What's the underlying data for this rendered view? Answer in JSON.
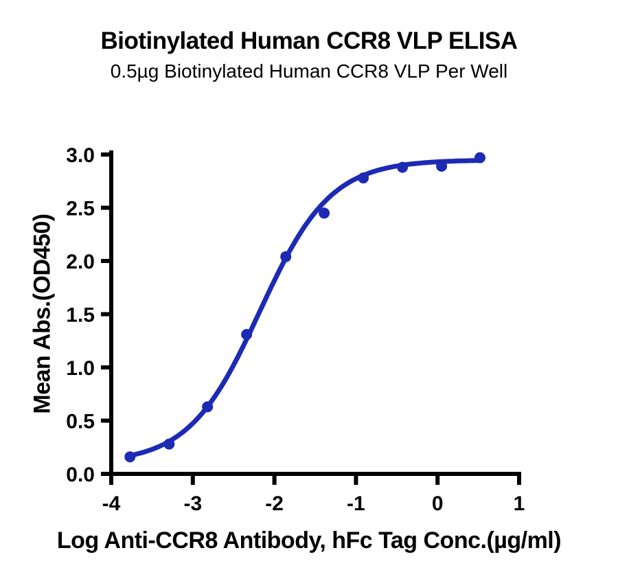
{
  "chart_data": {
    "type": "scatter",
    "title": "Biotinylated Human CCR8 VLP ELISA",
    "subtitle": "0.5µg Biotinylated Human CCR8 VLP Per Well",
    "xlabel": "Log Anti-CCR8 Antibody, hFc Tag Conc.(µg/ml)",
    "ylabel": "Mean Abs.(OD450)",
    "xlim": [
      -4,
      1
    ],
    "ylim": [
      0,
      3
    ],
    "grid": false,
    "legend": null,
    "xticks": {
      "values": [
        -4,
        -3,
        -2,
        -1,
        0,
        1
      ],
      "labels": [
        "-4",
        "-3",
        "-2",
        "-1",
        "0",
        "1"
      ]
    },
    "yticks": {
      "values": [
        0,
        0.5,
        1,
        1.5,
        2,
        2.5,
        3
      ],
      "labels": [
        "0.0",
        "0.5",
        "1.0",
        "1.5",
        "2.0",
        "2.5",
        "3.0"
      ]
    },
    "series": [
      {
        "name": "Anti-CCR8 Antibody, hFc Tag",
        "x": [
          -3.77,
          -3.29,
          -2.82,
          -2.34,
          -1.86,
          -1.39,
          -0.91,
          -0.43,
          0.05,
          0.52
        ],
        "y": [
          0.16,
          0.28,
          0.63,
          1.31,
          2.04,
          2.45,
          2.78,
          2.88,
          2.89,
          2.97
        ]
      }
    ],
    "fit": {
      "model": "4PL",
      "bottom": 0.1,
      "top": 2.95,
      "log_ec50": -2.18,
      "hill": 1.0,
      "x_start": -3.77,
      "x_end": 0.52
    },
    "colors": {
      "series": "#1c2ab4",
      "axis": "#000000",
      "text": "#000000",
      "background": "#ffffff"
    }
  }
}
